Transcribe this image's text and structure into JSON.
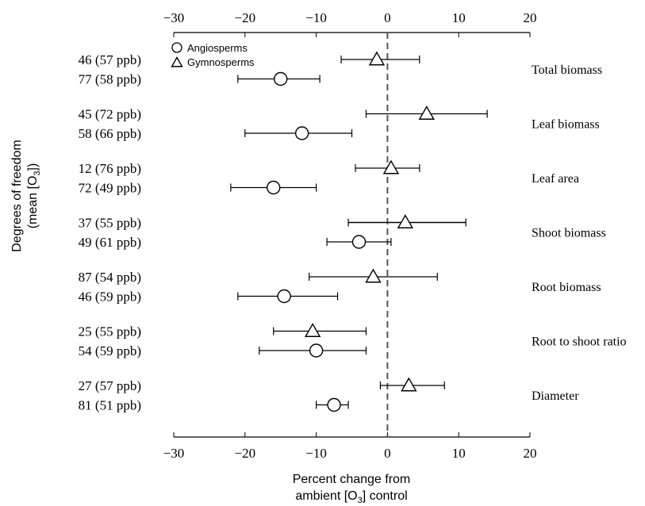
{
  "chart_data": {
    "type": "scatter",
    "title": "",
    "ylabel": [
      "Degrees of freedom",
      "(mean [O",
      "3",
      "])"
    ],
    "xlabel": [
      "Percent change from",
      "ambient [O",
      "3",
      "] control"
    ],
    "xlim": [
      -30,
      20
    ],
    "xticks": [
      -30,
      -20,
      -10,
      0,
      10,
      20
    ],
    "tick_labels": [
      "−30",
      "−20",
      "−10",
      "0",
      "10",
      "20"
    ],
    "reference_line": {
      "x": 0,
      "style": "dashed"
    },
    "legend": {
      "position": "top-left",
      "items": [
        {
          "name": "Angiosperms",
          "marker": "circle"
        },
        {
          "name": "Gymnosperms",
          "marker": "triangle"
        }
      ]
    },
    "series": [
      {
        "name": "Gymnosperms",
        "marker": "triangle"
      },
      {
        "name": "Angiosperms",
        "marker": "circle"
      }
    ],
    "groups": [
      {
        "name": "Total biomass",
        "rows": [
          {
            "series": "Gymnosperms",
            "label": "46 (57 ppb)",
            "mean": -1.5,
            "ci": [
              -6.5,
              4.5
            ]
          },
          {
            "series": "Angiosperms",
            "label": "77 (58 ppb)",
            "mean": -15,
            "ci": [
              -21,
              -9.5
            ]
          }
        ]
      },
      {
        "name": "Leaf biomass",
        "rows": [
          {
            "series": "Gymnosperms",
            "label": "45 (72 ppb)",
            "mean": 5.5,
            "ci": [
              -3,
              14
            ]
          },
          {
            "series": "Angiosperms",
            "label": "58 (66 ppb)",
            "mean": -12,
            "ci": [
              -20,
              -5
            ]
          }
        ]
      },
      {
        "name": "Leaf area",
        "rows": [
          {
            "series": "Gymnosperms",
            "label": "12 (76 ppb)",
            "mean": 0.5,
            "ci": [
              -4.5,
              4.5
            ]
          },
          {
            "series": "Angiosperms",
            "label": "72 (49 ppb)",
            "mean": -16,
            "ci": [
              -22,
              -10
            ]
          }
        ]
      },
      {
        "name": "Shoot biomass",
        "rows": [
          {
            "series": "Gymnosperms",
            "label": "37 (55 ppb)",
            "mean": 2.5,
            "ci": [
              -5.5,
              11
            ]
          },
          {
            "series": "Angiosperms",
            "label": "49 (61 ppb)",
            "mean": -4,
            "ci": [
              -8.5,
              0.5
            ]
          }
        ]
      },
      {
        "name": "Root biomass",
        "rows": [
          {
            "series": "Gymnosperms",
            "label": "87 (54 ppb)",
            "mean": -2,
            "ci": [
              -11,
              7
            ]
          },
          {
            "series": "Angiosperms",
            "label": "46 (59 ppb)",
            "mean": -14.5,
            "ci": [
              -21,
              -7
            ]
          }
        ]
      },
      {
        "name": "Root to shoot ratio",
        "rows": [
          {
            "series": "Gymnosperms",
            "label": "25 (55 ppb)",
            "mean": -10.5,
            "ci": [
              -16,
              -3
            ]
          },
          {
            "series": "Angiosperms",
            "label": "54 (59 ppb)",
            "mean": -10,
            "ci": [
              -18,
              -3
            ]
          }
        ]
      },
      {
        "name": "Diameter",
        "rows": [
          {
            "series": "Gymnosperms",
            "label": "27 (57 ppb)",
            "mean": 3,
            "ci": [
              -1,
              8
            ]
          },
          {
            "series": "Angiosperms",
            "label": "81 (51 ppb)",
            "mean": -7.5,
            "ci": [
              -10,
              -5.5
            ]
          }
        ]
      }
    ]
  }
}
